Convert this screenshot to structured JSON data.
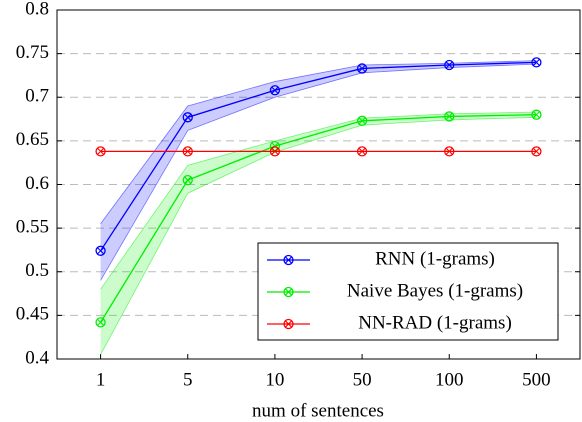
{
  "chart_data": {
    "type": "line",
    "x_label": "num of sentences",
    "categories": [
      "1",
      "5",
      "10",
      "50",
      "100",
      "500"
    ],
    "series": [
      {
        "name": "RNN (1-grams)",
        "color": "#0000ff",
        "values": [
          0.524,
          0.677,
          0.708,
          0.733,
          0.737,
          0.74
        ],
        "lower": [
          0.49,
          0.662,
          0.7,
          0.728,
          0.734,
          0.738
        ],
        "upper": [
          0.555,
          0.69,
          0.718,
          0.737,
          0.739,
          0.742
        ]
      },
      {
        "name": "Naive Bayes (1-grams)",
        "color": "#00ee00",
        "values": [
          0.442,
          0.605,
          0.644,
          0.673,
          0.678,
          0.68
        ],
        "lower": [
          0.405,
          0.59,
          0.637,
          0.668,
          0.674,
          0.677
        ],
        "upper": [
          0.48,
          0.622,
          0.65,
          0.676,
          0.681,
          0.683
        ]
      },
      {
        "name": "NN-RAD (1-grams)",
        "color": "#ff0000",
        "values": [
          0.638,
          0.638,
          0.638,
          0.638,
          0.638,
          0.638
        ]
      }
    ],
    "ylim": [
      0.4,
      0.8
    ],
    "yticks": [
      0.4,
      0.45,
      0.5,
      0.55,
      0.6,
      0.65,
      0.7,
      0.75,
      0.8
    ],
    "grid": true,
    "legend": "lower right"
  }
}
